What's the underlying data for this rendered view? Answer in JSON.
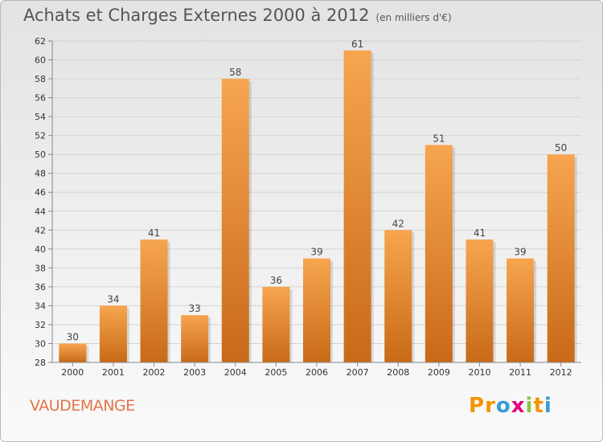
{
  "title": {
    "main": "Achats et Charges Externes 2000 à 2012",
    "unit": "(en milliers d'€)"
  },
  "commune": "VAUDEMANGE",
  "logo": {
    "text": "Proxiti",
    "letters": [
      {
        "char": "P",
        "color": "#f29400"
      },
      {
        "char": "r",
        "color": "#f29400"
      },
      {
        "char": "o",
        "color": "#3a9bd8"
      },
      {
        "char": "x",
        "color": "#e5007e"
      },
      {
        "char": "i",
        "color": "#8cc63f"
      },
      {
        "char": "t",
        "color": "#f29400"
      },
      {
        "char": "i",
        "color": "#3a9bd8"
      }
    ]
  },
  "colors": {
    "bar_top": "#f7a54f",
    "bar_bottom": "#c86a18",
    "commune_text": "#e2754a"
  },
  "chart_data": {
    "type": "bar",
    "categories": [
      "2000",
      "2001",
      "2002",
      "2003",
      "2004",
      "2005",
      "2006",
      "2007",
      "2008",
      "2009",
      "2010",
      "2011",
      "2012"
    ],
    "values": [
      30,
      34,
      41,
      33,
      58,
      36,
      39,
      61,
      42,
      51,
      41,
      39,
      50
    ],
    "ylim": [
      28,
      62
    ],
    "yticks": [
      28,
      30,
      32,
      34,
      36,
      38,
      40,
      42,
      44,
      46,
      48,
      50,
      52,
      54,
      56,
      58,
      60,
      62
    ],
    "grid": true,
    "legend": "none"
  }
}
